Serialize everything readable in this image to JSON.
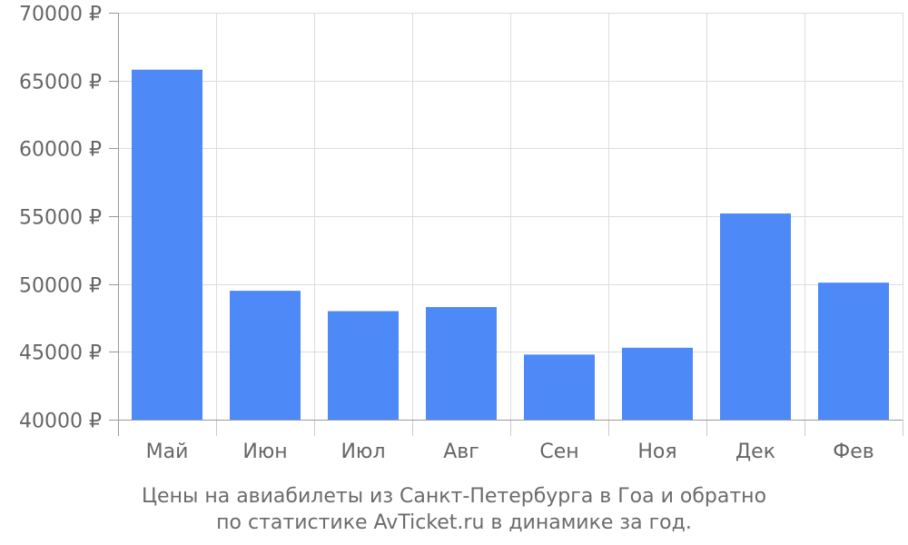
{
  "chart_data": {
    "type": "bar",
    "categories": [
      "Май",
      "Июн",
      "Июл",
      "Авг",
      "Сен",
      "Ноя",
      "Дек",
      "Фев"
    ],
    "values": [
      65800,
      49500,
      48000,
      48300,
      44800,
      45300,
      55200,
      50100
    ],
    "y_ticks": [
      "40000 ₽",
      "45000 ₽",
      "50000 ₽",
      "55000 ₽",
      "60000 ₽",
      "65000 ₽",
      "70000 ₽"
    ],
    "y_tick_values": [
      40000,
      45000,
      50000,
      55000,
      60000,
      65000,
      70000
    ],
    "ylim": [
      40000,
      70000
    ],
    "grid": true,
    "bar_color": "#4d8af8",
    "grid_color": "#dddddd",
    "axis_color": "#999999",
    "caption_line1": "Цены на авиабилеты из Санкт-Петербурга в Гоа и обратно",
    "caption_line2": "по статистике AvTicket.ru в динамике за год."
  }
}
